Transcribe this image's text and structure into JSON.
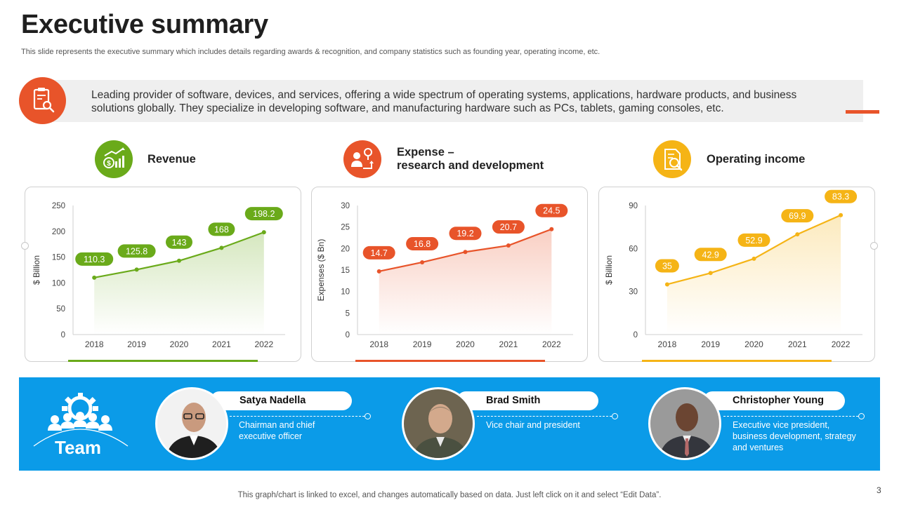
{
  "slide": {
    "title": "Executive summary",
    "subtitle": "This slide represents the executive summary which includes details regarding awards & recognition, and company statistics such as founding year, operating income, etc.",
    "intro": "Leading provider of software, devices, and services, offering a wide spectrum of operating systems, applications, hardware products, and business solutions globally. They specialize in developing software, and manufacturing  hardware such as PCs, tablets, gaming consoles, etc.",
    "footer_note": "This graph/chart is linked to excel,  and changes automatically based on data. Just left click on it and select “Edit Data”.",
    "page_number": "3"
  },
  "kpis": [
    {
      "title": "Revenue",
      "icon": "revenue-growth-icon",
      "color": "#6aaa1a"
    },
    {
      "title_line1": "Expense –",
      "title_line2": "research and development",
      "icon": "research-investment-icon",
      "color": "#e8542a"
    },
    {
      "title": "Operating income",
      "icon": "income-report-icon",
      "color": "#f5b416"
    }
  ],
  "chart_data": [
    {
      "type": "area",
      "categories": [
        "2018",
        "2019",
        "2020",
        "2021",
        "2022"
      ],
      "series": [
        {
          "values": [
            110.3,
            125.8,
            143,
            168,
            198.2
          ]
        }
      ],
      "ylabel": "$ Billion",
      "ylim": [
        0,
        250
      ],
      "yticks": [
        0,
        50,
        100,
        150,
        200,
        250
      ],
      "color": "#6aaa1a"
    },
    {
      "type": "area",
      "categories": [
        "2018",
        "2019",
        "2020",
        "2021",
        "2022"
      ],
      "series": [
        {
          "values": [
            14.7,
            16.8,
            19.2,
            20.7,
            24.5
          ]
        }
      ],
      "ylabel": "Expenses ($ Bn)",
      "ylim": [
        0,
        30
      ],
      "yticks": [
        0,
        5,
        10,
        15,
        20,
        25,
        30
      ],
      "color": "#e8542a"
    },
    {
      "type": "area",
      "categories": [
        "2018",
        "2019",
        "2020",
        "2021",
        "2022"
      ],
      "series": [
        {
          "values": [
            35,
            42.9,
            52.9,
            69.9,
            83.3
          ]
        }
      ],
      "ylabel": "$ Billion",
      "ylim": [
        0,
        90
      ],
      "yticks": [
        0,
        30,
        60,
        90
      ],
      "color": "#f5b416"
    }
  ],
  "team": {
    "label": "Team",
    "members": [
      {
        "name": "Satya Nadella",
        "role_lines": [
          "Chairman  and  chief",
          "executive officer"
        ]
      },
      {
        "name": "Brad Smith",
        "role_lines": [
          "Vice chair and president"
        ]
      },
      {
        "name": "Christopher Young",
        "role_lines": [
          "Executive vice president,",
          "business development,  strategy",
          "and ventures"
        ]
      }
    ]
  },
  "colors": {
    "accent": "#e8542a",
    "team_band": "#0b9be8",
    "intro_band": "#efefef"
  }
}
